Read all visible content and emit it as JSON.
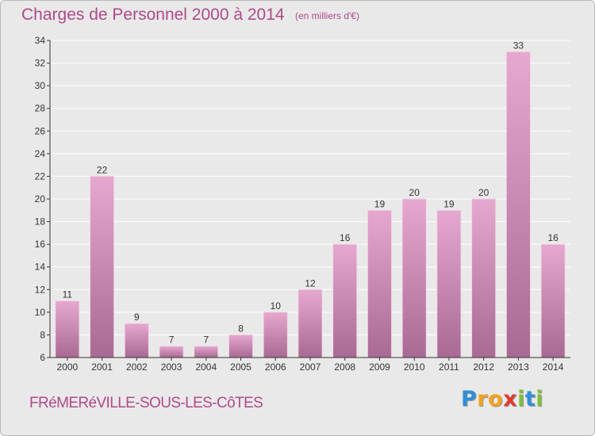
{
  "title": "Charges de Personnel 2000 à 2014",
  "subtitle": "(en milliers d'€)",
  "commune": "FRéMERéVILLE-SOUS-LES-CôTES",
  "logo": {
    "text": "Proxiti",
    "letters": [
      {
        "ch": "P",
        "color": "#2f8fd6"
      },
      {
        "ch": "r",
        "color": "#f2a21c"
      },
      {
        "ch": "o",
        "color": "#f2a21c"
      },
      {
        "ch": "x",
        "color": "#e23a2e"
      },
      {
        "ch": "i",
        "color": "#7cbf3a"
      },
      {
        "ch": "t",
        "color": "#2f8fd6"
      },
      {
        "ch": "i",
        "color": "#7cbf3a"
      }
    ]
  },
  "colors": {
    "bar_light": "#e6a8cf",
    "bar_dark": "#a86a92",
    "text": "#b04a8a",
    "axis": "#333333",
    "grid": "#ffffff"
  },
  "chart_data": {
    "type": "bar",
    "categories": [
      "2000",
      "2001",
      "2002",
      "2003",
      "2004",
      "2005",
      "2006",
      "2007",
      "2008",
      "2009",
      "2010",
      "2011",
      "2012",
      "2013",
      "2014"
    ],
    "values": [
      11,
      22,
      9,
      7,
      7,
      8,
      10,
      12,
      16,
      19,
      20,
      19,
      20,
      33,
      16
    ],
    "ylim": [
      6,
      34
    ],
    "yticks": [
      6,
      8,
      10,
      12,
      14,
      16,
      18,
      20,
      22,
      24,
      26,
      28,
      30,
      32,
      34
    ],
    "grid": true,
    "data_labels": true
  }
}
